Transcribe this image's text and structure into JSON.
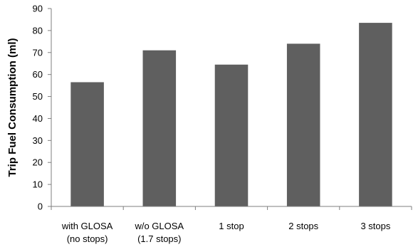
{
  "chart_data": {
    "type": "bar",
    "title": "",
    "xlabel": "",
    "ylabel": "Trip Fuel Consumption (ml)",
    "categories": [
      [
        "with GLOSA",
        "(no stops)"
      ],
      [
        "w/o GLOSA",
        "(1.7 stops)"
      ],
      [
        "1 stop"
      ],
      [
        "2 stops"
      ],
      [
        "3 stops"
      ]
    ],
    "values": [
      56.5,
      71,
      64.5,
      74,
      83.5
    ],
    "ylim": [
      0,
      90
    ],
    "yticks": [
      "0",
      "10",
      "20",
      "30",
      "40",
      "50",
      "60",
      "70",
      "80",
      "90"
    ],
    "grid": false,
    "legend": "none",
    "bar_color": "#5f5f5f",
    "axis_color": "#7f7f7f"
  }
}
